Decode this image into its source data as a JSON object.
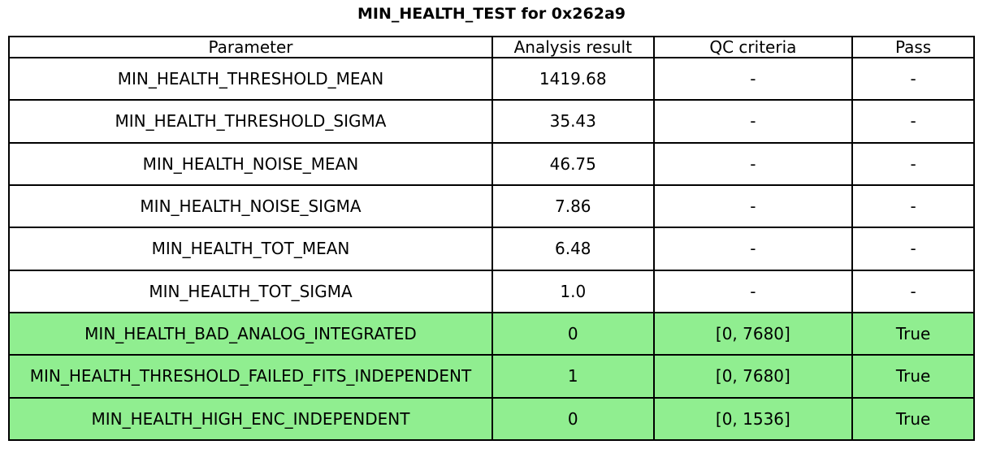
{
  "title": "MIN_HEALTH_TEST for 0x262a9",
  "chart_data": {
    "type": "table",
    "title": "MIN_HEALTH_TEST for 0x262a9",
    "columns": [
      "Parameter",
      "Analysis result",
      "QC criteria",
      "Pass"
    ],
    "rows": [
      {
        "parameter": "MIN_HEALTH_THRESHOLD_MEAN",
        "analysis_result": "1419.68",
        "qc_criteria": "-",
        "pass": "-",
        "highlighted": false
      },
      {
        "parameter": "MIN_HEALTH_THRESHOLD_SIGMA",
        "analysis_result": "35.43",
        "qc_criteria": "-",
        "pass": "-",
        "highlighted": false
      },
      {
        "parameter": "MIN_HEALTH_NOISE_MEAN",
        "analysis_result": "46.75",
        "qc_criteria": "-",
        "pass": "-",
        "highlighted": false
      },
      {
        "parameter": "MIN_HEALTH_NOISE_SIGMA",
        "analysis_result": "7.86",
        "qc_criteria": "-",
        "pass": "-",
        "highlighted": false
      },
      {
        "parameter": "MIN_HEALTH_TOT_MEAN",
        "analysis_result": "6.48",
        "qc_criteria": "-",
        "pass": "-",
        "highlighted": false
      },
      {
        "parameter": "MIN_HEALTH_TOT_SIGMA",
        "analysis_result": "1.0",
        "qc_criteria": "-",
        "pass": "-",
        "highlighted": false
      },
      {
        "parameter": "MIN_HEALTH_BAD_ANALOG_INTEGRATED",
        "analysis_result": "0",
        "qc_criteria": "[0, 7680]",
        "pass": "True",
        "highlighted": true
      },
      {
        "parameter": "MIN_HEALTH_THRESHOLD_FAILED_FITS_INDEPENDENT",
        "analysis_result": "1",
        "qc_criteria": "[0, 7680]",
        "pass": "True",
        "highlighted": true
      },
      {
        "parameter": "MIN_HEALTH_HIGH_ENC_INDEPENDENT",
        "analysis_result": "0",
        "qc_criteria": "[0, 1536]",
        "pass": "True",
        "highlighted": true
      }
    ]
  },
  "colors": {
    "pass_row_bg": "#90EE90",
    "border": "#000000",
    "text": "#000000",
    "background": "#ffffff"
  }
}
